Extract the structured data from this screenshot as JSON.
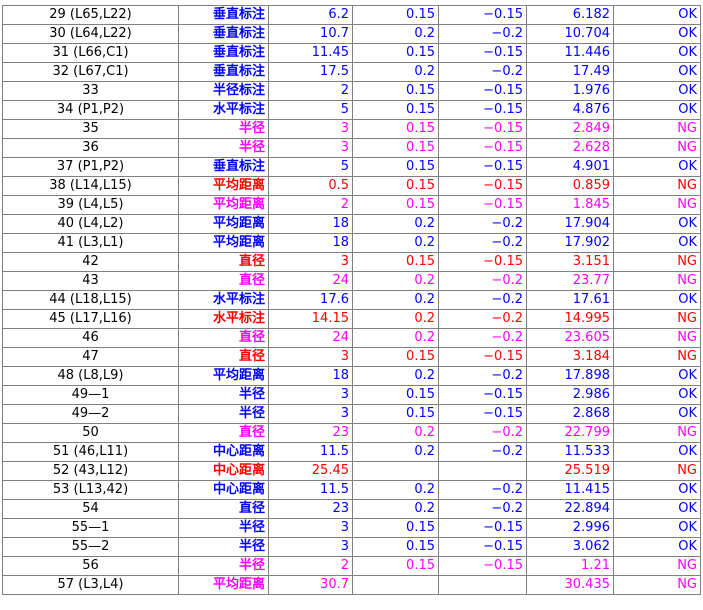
{
  "table": {
    "rows": [
      {
        "cells": [
          "29 (L65,L22)",
          "垂直标注",
          "6.2",
          "0.15",
          "−0.15",
          "6.182",
          "OK"
        ],
        "color": "#0000ff"
      },
      {
        "cells": [
          "30 (L64,L22)",
          "垂直标注",
          "10.7",
          "0.2",
          "−0.2",
          "10.704",
          "OK"
        ],
        "color": "#0000ff"
      },
      {
        "cells": [
          "31 (L66,C1)",
          "垂直标注",
          "11.45",
          "0.15",
          "−0.15",
          "11.446",
          "OK"
        ],
        "color": "#0000ff"
      },
      {
        "cells": [
          "32 (L67,C1)",
          "垂直标注",
          "17.5",
          "0.2",
          "−0.2",
          "17.49",
          "OK"
        ],
        "color": "#0000ff"
      },
      {
        "cells": [
          "33",
          "半径标注",
          "2",
          "0.15",
          "−0.15",
          "1.976",
          "OK"
        ],
        "color": "#0000ff"
      },
      {
        "cells": [
          "34 (P1,P2)",
          "水平标注",
          "5",
          "0.15",
          "−0.15",
          "4.876",
          "OK"
        ],
        "color": "#0000ff"
      },
      {
        "cells": [
          "35",
          "半径",
          "3",
          "0.15",
          "−0.15",
          "2.849",
          "NG"
        ],
        "color": "#ff00ff"
      },
      {
        "cells": [
          "36",
          "半径",
          "3",
          "0.15",
          "−0.15",
          "2.628",
          "NG"
        ],
        "color": "#ff00ff"
      },
      {
        "cells": [
          "37 (P1,P2)",
          "垂直标注",
          "5",
          "0.15",
          "−0.15",
          "4.901",
          "OK"
        ],
        "color": "#0000ff"
      },
      {
        "cells": [
          "38 (L14,L15)",
          "平均距离",
          "0.5",
          "0.15",
          "−0.15",
          "0.859",
          "NG"
        ],
        "color": "#ff0000"
      },
      {
        "cells": [
          "39 (L4,L5)",
          "平均距离",
          "2",
          "0.15",
          "−0.15",
          "1.845",
          "NG"
        ],
        "color": "#ff00ff"
      },
      {
        "cells": [
          "40 (L4,L2)",
          "平均距离",
          "18",
          "0.2",
          "−0.2",
          "17.904",
          "OK"
        ],
        "color": "#0000ff"
      },
      {
        "cells": [
          "41 (L3,L1)",
          "平均距离",
          "18",
          "0.2",
          "−0.2",
          "17.902",
          "OK"
        ],
        "color": "#0000ff"
      },
      {
        "cells": [
          "42",
          "直径",
          "3",
          "0.15",
          "−0.15",
          "3.151",
          "NG"
        ],
        "color": "#ff0000"
      },
      {
        "cells": [
          "43",
          "直径",
          "24",
          "0.2",
          "−0.2",
          "23.77",
          "NG"
        ],
        "color": "#ff00ff"
      },
      {
        "cells": [
          "44 (L18,L15)",
          "水平标注",
          "17.6",
          "0.2",
          "−0.2",
          "17.61",
          "OK"
        ],
        "color": "#0000ff"
      },
      {
        "cells": [
          "45 (L17,L16)",
          "水平标注",
          "14.15",
          "0.2",
          "−0.2",
          "14.995",
          "NG"
        ],
        "color": "#ff0000"
      },
      {
        "cells": [
          "46",
          "直径",
          "24",
          "0.2",
          "−0.2",
          "23.605",
          "NG"
        ],
        "color": "#ff00ff"
      },
      {
        "cells": [
          "47",
          "直径",
          "3",
          "0.15",
          "−0.15",
          "3.184",
          "NG"
        ],
        "color": "#ff0000"
      },
      {
        "cells": [
          "48 (L8,L9)",
          "平均距离",
          "18",
          "0.2",
          "−0.2",
          "17.898",
          "OK"
        ],
        "color": "#0000ff"
      },
      {
        "cells": [
          "49—1",
          "半径",
          "3",
          "0.15",
          "−0.15",
          "2.986",
          "OK"
        ],
        "color": "#0000ff"
      },
      {
        "cells": [
          "49—2",
          "半径",
          "3",
          "0.15",
          "−0.15",
          "2.868",
          "OK"
        ],
        "color": "#0000ff"
      },
      {
        "cells": [
          "50",
          "直径",
          "23",
          "0.2",
          "−0.2",
          "22.799",
          "NG"
        ],
        "color": "#ff00ff"
      },
      {
        "cells": [
          "51 (46,L11)",
          "中心距离",
          "11.5",
          "0.2",
          "−0.2",
          "11.533",
          "OK"
        ],
        "color": "#0000ff"
      },
      {
        "cells": [
          "52 (43,L12)",
          "中心距离",
          "25.45",
          null,
          null,
          "25.519",
          "NG"
        ],
        "color": "#ff0000"
      },
      {
        "cells": [
          "53 (L13,42)",
          "中心距离",
          "11.5",
          "0.2",
          "−0.2",
          "11.415",
          "OK"
        ],
        "color": "#0000ff"
      },
      {
        "cells": [
          "54",
          "直径",
          "23",
          "0.2",
          "−0.2",
          "22.894",
          "OK"
        ],
        "color": "#0000ff"
      },
      {
        "cells": [
          "55—1",
          "半径",
          "3",
          "0.15",
          "−0.15",
          "2.996",
          "OK"
        ],
        "color": "#0000ff"
      },
      {
        "cells": [
          "55—2",
          "半径",
          "3",
          "0.15",
          "−0.15",
          "3.062",
          "OK"
        ],
        "color": "#0000ff"
      },
      {
        "cells": [
          "56",
          "半径",
          "2",
          "0.15",
          "−0.15",
          "1.21",
          "NG"
        ],
        "color": "#ff00ff"
      },
      {
        "cells": [
          "57 (L3,L4)",
          "平均距离",
          "30.7",
          null,
          null,
          "30.435",
          "NG"
        ],
        "color": "#ff00ff"
      }
    ]
  }
}
